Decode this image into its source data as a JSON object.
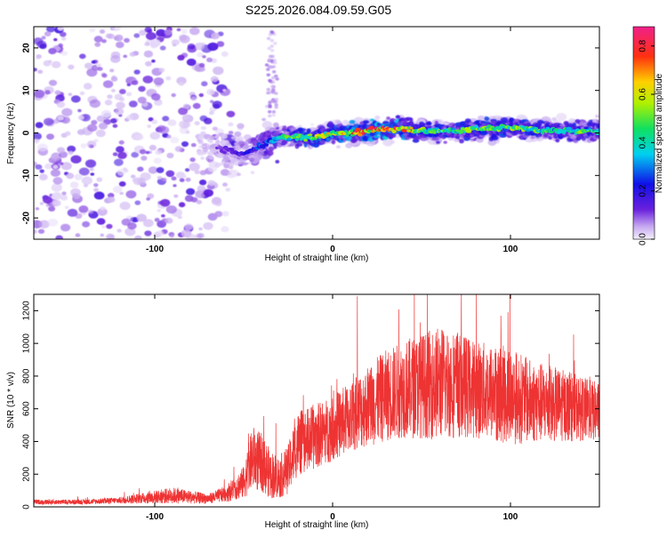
{
  "title": "S225.2026.084.09.59.G05",
  "colors": {
    "line": "#ee3333",
    "low_density": "#d9c4f5",
    "mid_density": "#7b2ee0",
    "core": "#1f10d8"
  },
  "chart_data": [
    {
      "type": "heatmap",
      "xlabel": "Height of straight line (km)",
      "ylabel": "Frequency (Hz)",
      "xlim": [
        -168,
        150
      ],
      "ylim": [
        -25,
        25
      ],
      "xticks": [
        -100,
        0,
        100
      ],
      "yticks": [
        -20,
        -10,
        0,
        10,
        20
      ],
      "colorbar": {
        "label": "Normalized spectral amplitude",
        "range": [
          0,
          0.88
        ],
        "ticks": [
          "0.0",
          "0.2",
          "0.4",
          "0.6",
          "0.8"
        ],
        "colormap": "rainbow (violet-blue-cyan-green-yellow-red-magenta)"
      },
      "ridge": {
        "x": [
          -70,
          -60,
          -50,
          -40,
          -30,
          -20,
          -10,
          0,
          10,
          20,
          30,
          40,
          50,
          60,
          70,
          80,
          90,
          100,
          110,
          120,
          130,
          140,
          150
        ],
        "freq": [
          -3,
          -4,
          -5,
          -3,
          -1,
          -1,
          -1,
          0,
          0,
          0.5,
          1,
          1,
          0.5,
          0.5,
          0.5,
          1,
          1,
          1.5,
          1,
          0.5,
          0.5,
          0.5,
          0.5
        ],
        "amplitude": [
          0.1,
          0.15,
          0.2,
          0.3,
          0.45,
          0.6,
          0.65,
          0.7,
          0.75,
          0.8,
          0.85,
          0.8,
          0.6,
          0.55,
          0.55,
          0.6,
          0.55,
          0.6,
          0.55,
          0.5,
          0.45,
          0.55,
          0.45
        ]
      }
    },
    {
      "type": "line",
      "xlabel": "Height of straight line (km)",
      "ylabel": "SNR (10 * v/v)",
      "xlim": [
        -168,
        150
      ],
      "ylim": [
        0,
        1300
      ],
      "xticks": [
        -100,
        0,
        100
      ],
      "yticks": [
        0,
        200,
        400,
        600,
        800,
        1000,
        1200
      ],
      "envelope": {
        "x": [
          -168,
          -140,
          -120,
          -100,
          -90,
          -80,
          -70,
          -60,
          -50,
          -45,
          -40,
          -35,
          -30,
          -25,
          -20,
          -10,
          0,
          10,
          20,
          30,
          40,
          50,
          60,
          70,
          80,
          90,
          100,
          110,
          120,
          130,
          140,
          150
        ],
        "mean": [
          30,
          30,
          40,
          60,
          70,
          60,
          50,
          80,
          150,
          300,
          270,
          200,
          180,
          230,
          380,
          430,
          480,
          550,
          620,
          680,
          720,
          740,
          760,
          750,
          720,
          700,
          680,
          650,
          630,
          620,
          600,
          580
        ],
        "spread": [
          15,
          15,
          20,
          40,
          50,
          40,
          30,
          50,
          100,
          200,
          180,
          150,
          130,
          150,
          200,
          200,
          200,
          220,
          250,
          280,
          300,
          320,
          350,
          330,
          300,
          300,
          300,
          260,
          240,
          220,
          200,
          180
        ]
      }
    }
  ]
}
